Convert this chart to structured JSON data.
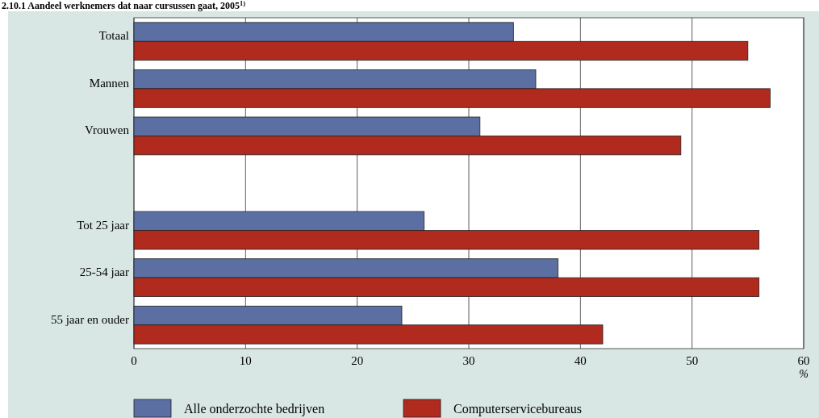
{
  "chart_data": {
    "type": "bar",
    "orientation": "horizontal",
    "title": "2.10.1 Aandeel werknemers dat naar cursussen gaat, 2005$^{1)}$",
    "xlabel": "%",
    "categories": [
      "Totaal",
      "Mannen",
      "Vrouwen",
      null,
      "Tot 25 jaar",
      "25-54 jaar",
      "55 jaar en ouder"
    ],
    "series": [
      {
        "name": "Alle onderzochte bedrijven",
        "color": "#5b6fa3",
        "values": [
          34,
          36,
          31,
          null,
          26,
          38,
          24
        ]
      },
      {
        "name": "Computerservicebureaus",
        "color": "#b02a1e",
        "values": [
          55,
          57,
          49,
          null,
          56,
          56,
          42
        ]
      }
    ],
    "xlim": [
      0,
      60
    ],
    "xticks": [
      0,
      10,
      20,
      30,
      40,
      50,
      60
    ],
    "grid": "x",
    "legend": "bottom"
  }
}
